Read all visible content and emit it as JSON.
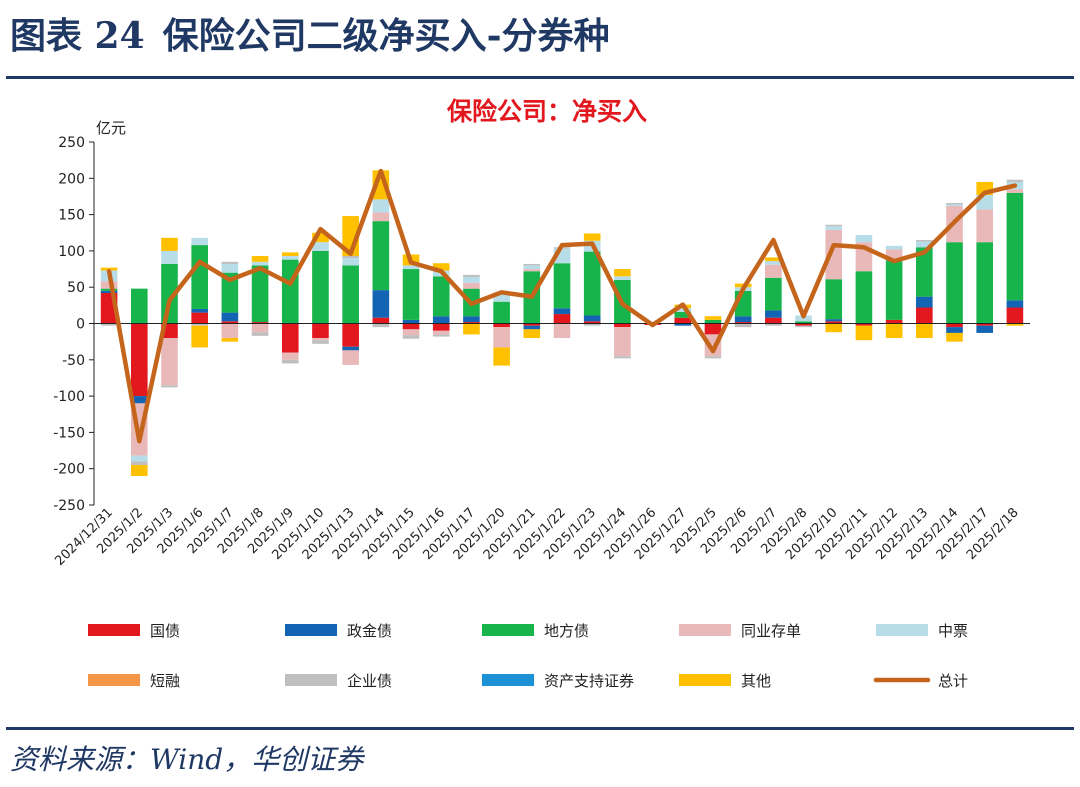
{
  "figure": {
    "label": "图表 24",
    "title": "保险公司二级净买入-分券种"
  },
  "source": "资料来源：Wind，华创证券",
  "colors": {
    "国债": "#e3171e",
    "政金债": "#1464b4",
    "地方债": "#16b44a",
    "同业存单": "#e9b8b8",
    "中票": "#b7dde8",
    "短融": "#f79646",
    "企业债": "#bfbfbf",
    "资产支持证券": "#1e90d6",
    "其他": "#ffc000",
    "总计": "#c5651b",
    "title": "#e3171e",
    "text": "#1f3864"
  },
  "chart_data": {
    "type": "bar",
    "stacked": true,
    "title": "保险公司：净买入",
    "ylabel": "亿元",
    "xlabel": "",
    "ylim": [
      -250,
      250
    ],
    "yticks": [
      -250,
      -200,
      -150,
      -100,
      -50,
      0,
      50,
      100,
      150,
      200,
      250
    ],
    "grid": false,
    "legend_position": "bottom",
    "categories": [
      "2024/12/31",
      "2025/1/2",
      "2025/1/3",
      "2025/1/6",
      "2025/1/7",
      "2025/1/8",
      "2025/1/9",
      "2025/1/10",
      "2025/1/13",
      "2025/1/14",
      "2025/1/15",
      "2025/1/16",
      "2025/1/17",
      "2025/1/20",
      "2025/1/21",
      "2025/1/22",
      "2025/1/23",
      "2025/1/24",
      "2025/1/26",
      "2025/1/27",
      "2025/2/5",
      "2025/2/6",
      "2025/2/7",
      "2025/2/8",
      "2025/2/10",
      "2025/2/11",
      "2025/2/12",
      "2025/2/13",
      "2025/2/14",
      "2025/2/17",
      "2025/2/18"
    ],
    "series": [
      {
        "name": "国债",
        "values": [
          42,
          -100,
          -20,
          15,
          3,
          2,
          -40,
          -20,
          -32,
          8,
          -8,
          -10,
          2,
          -5,
          -3,
          13,
          3,
          -5,
          -2,
          8,
          -15,
          2,
          8,
          -3,
          3,
          -3,
          5,
          22,
          -5,
          -3,
          22
        ]
      },
      {
        "name": "政金债",
        "values": [
          3,
          -10,
          0,
          5,
          12,
          0,
          0,
          0,
          -5,
          38,
          5,
          10,
          8,
          0,
          -5,
          8,
          8,
          0,
          0,
          -3,
          0,
          8,
          10,
          0,
          3,
          0,
          0,
          15,
          -8,
          -10,
          10
        ]
      },
      {
        "name": "地方债",
        "values": [
          3,
          48,
          82,
          88,
          55,
          78,
          88,
          100,
          80,
          95,
          70,
          55,
          38,
          30,
          72,
          62,
          88,
          60,
          0,
          8,
          5,
          35,
          45,
          3,
          55,
          72,
          82,
          68,
          112,
          112,
          148
        ]
      },
      {
        "name": "同业存单",
        "values": [
          10,
          -72,
          -65,
          0,
          -20,
          -12,
          -10,
          -3,
          -20,
          12,
          -8,
          -5,
          8,
          -28,
          3,
          -20,
          0,
          -40,
          0,
          0,
          -30,
          0,
          18,
          0,
          68,
          40,
          15,
          0,
          50,
          45,
          5
        ]
      },
      {
        "name": "中票",
        "values": [
          15,
          -8,
          18,
          10,
          12,
          5,
          5,
          12,
          10,
          18,
          5,
          8,
          8,
          10,
          5,
          20,
          15,
          5,
          0,
          5,
          0,
          5,
          5,
          8,
          5,
          10,
          5,
          8,
          2,
          20,
          10
        ]
      },
      {
        "name": "短融",
        "values": [
          0,
          0,
          0,
          0,
          0,
          0,
          0,
          0,
          0,
          0,
          0,
          0,
          0,
          0,
          0,
          0,
          0,
          0,
          0,
          0,
          0,
          0,
          0,
          0,
          0,
          0,
          0,
          0,
          0,
          0,
          0
        ]
      },
      {
        "name": "企业债",
        "values": [
          -3,
          -5,
          -3,
          -3,
          3,
          -5,
          -5,
          -5,
          3,
          -5,
          -5,
          -3,
          3,
          3,
          2,
          2,
          -3,
          -3,
          0,
          0,
          -3,
          -5,
          -3,
          -2,
          2,
          0,
          0,
          2,
          2,
          0,
          3
        ]
      },
      {
        "name": "资产支持证券",
        "values": [
          0,
          0,
          0,
          0,
          0,
          0,
          0,
          0,
          0,
          0,
          0,
          0,
          0,
          0,
          0,
          0,
          0,
          0,
          0,
          0,
          0,
          0,
          0,
          0,
          0,
          0,
          0,
          0,
          0,
          0,
          0
        ]
      },
      {
        "name": "其他",
        "values": [
          4,
          -15,
          18,
          -30,
          -5,
          8,
          5,
          13,
          55,
          40,
          15,
          10,
          -15,
          -25,
          -12,
          0,
          10,
          10,
          0,
          5,
          5,
          5,
          5,
          0,
          -12,
          -20,
          -20,
          -20,
          -12,
          18,
          -3
        ]
      },
      {
        "name": "总计",
        "type": "line",
        "values": [
          72,
          -162,
          32,
          85,
          60,
          76,
          55,
          130,
          96,
          210,
          84,
          72,
          27,
          43,
          37,
          108,
          110,
          27,
          -2,
          26,
          -38,
          48,
          115,
          10,
          108,
          105,
          86,
          98,
          140,
          180,
          190
        ]
      }
    ]
  },
  "legend": [
    {
      "name": "国债",
      "kind": "bar"
    },
    {
      "name": "政金债",
      "kind": "bar"
    },
    {
      "name": "地方债",
      "kind": "bar"
    },
    {
      "name": "同业存单",
      "kind": "bar"
    },
    {
      "name": "中票",
      "kind": "bar"
    },
    {
      "name": "短融",
      "kind": "bar"
    },
    {
      "name": "企业债",
      "kind": "bar"
    },
    {
      "name": "资产支持证券",
      "kind": "bar"
    },
    {
      "name": "其他",
      "kind": "bar"
    },
    {
      "name": "总计",
      "kind": "line"
    }
  ]
}
